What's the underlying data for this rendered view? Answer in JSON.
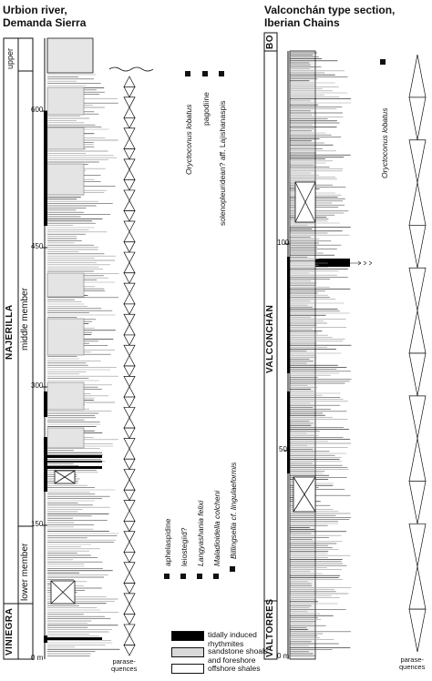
{
  "left_section": {
    "title_line1": "Urbion river,",
    "title_line2": "Demanda Sierra",
    "units": {
      "upper": "upper",
      "najerilla": "NAJERILLA",
      "middle": "middle member",
      "lower": "lower member",
      "viniegra": "VINIEGRA"
    },
    "ticks": [
      "600",
      "450",
      "300",
      "150",
      "0 m"
    ],
    "parasequence_label": [
      "parase-",
      "quences"
    ],
    "fossils_upper": [
      "Oryctoconus lobatus",
      "pagodiine",
      "solenopleuridean? aff. Lajishanaspis"
    ],
    "fossils_lower": [
      "aphelaspidine",
      "leiostegiid?",
      "Langyashania felixi",
      "Maladioidella colcheni",
      "Billingsella cf. lingulaeformis"
    ]
  },
  "right_section": {
    "title_line1": "Valconchán type section,",
    "title_line2": "Iberian Chains",
    "units": {
      "bo": "BO",
      "valconchan": "VALCONCHÁN",
      "valtorres": "VALTORRES"
    },
    "ticks": [
      "100",
      "50",
      "0 m"
    ],
    "parasequence_label": [
      "parase-",
      "quences"
    ],
    "fossils": [
      "Oryctoconus lobatus"
    ]
  },
  "legend": [
    {
      "label_lines": [
        "tidally induced",
        "rhythmites"
      ],
      "color": "#000000"
    },
    {
      "label_lines": [
        "sandstone shoals",
        "and foreshore"
      ],
      "color": "#d9d9d9"
    },
    {
      "label_lines": [
        "offshore shales"
      ],
      "color": "#ffffff"
    }
  ]
}
